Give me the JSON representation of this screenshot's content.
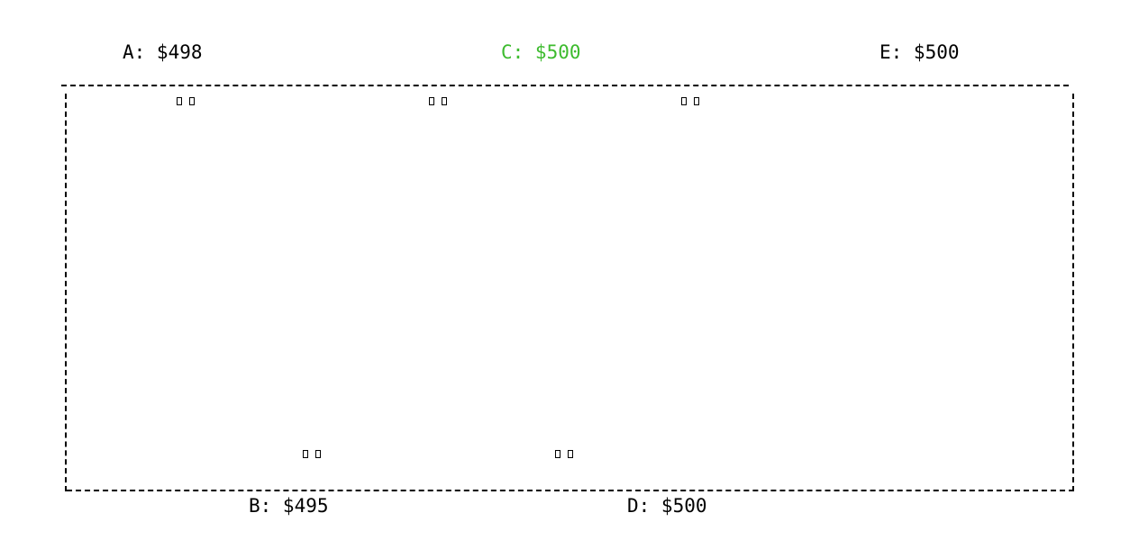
{
  "players": {
    "a": {
      "label": "A: $498",
      "color": "#000000"
    },
    "b": {
      "label": "B: $495",
      "color": "#000000"
    },
    "c": {
      "label": "C: $500",
      "color": "#3dbb2e",
      "active": true
    },
    "d": {
      "label": "D: $500",
      "color": "#000000"
    },
    "e": {
      "label": "E: $500",
      "color": "#000000"
    }
  },
  "colors": {
    "active_player": "#3dbb2e",
    "default_text": "#000000",
    "border": "#000000"
  },
  "icons": {
    "face_down_card": "card-back-icon"
  }
}
